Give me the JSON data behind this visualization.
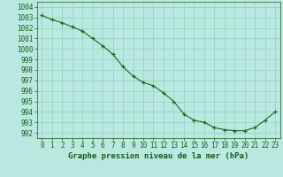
{
  "x": [
    0,
    1,
    2,
    3,
    4,
    5,
    6,
    7,
    8,
    9,
    10,
    11,
    12,
    13,
    14,
    15,
    16,
    17,
    18,
    19,
    20,
    21,
    22,
    23
  ],
  "y": [
    1003.2,
    1002.8,
    1002.5,
    1002.1,
    1001.7,
    1001.0,
    1000.3,
    999.5,
    998.3,
    997.4,
    996.8,
    996.5,
    995.8,
    995.0,
    993.8,
    993.2,
    993.0,
    992.5,
    992.3,
    992.2,
    992.2,
    992.5,
    993.2,
    994.0
  ],
  "ylim": [
    991.5,
    1004.5
  ],
  "yticks": [
    992,
    993,
    994,
    995,
    996,
    997,
    998,
    999,
    1000,
    1001,
    1002,
    1003,
    1004
  ],
  "xlim": [
    -0.5,
    23.5
  ],
  "xticks": [
    0,
    1,
    2,
    3,
    4,
    5,
    6,
    7,
    8,
    9,
    10,
    11,
    12,
    13,
    14,
    15,
    16,
    17,
    18,
    19,
    20,
    21,
    22,
    23
  ],
  "xlabel": "Graphe pression niveau de la mer (hPa)",
  "line_color": "#1a6b1a",
  "marker_color": "#1a6b1a",
  "bg_color": "#b8e8e0",
  "grid_color": "#90d0c0",
  "text_color": "#1a5c1a",
  "fig_bg_color": "#b8e8e0",
  "tick_fontsize": 5.5,
  "xlabel_fontsize": 6.5
}
